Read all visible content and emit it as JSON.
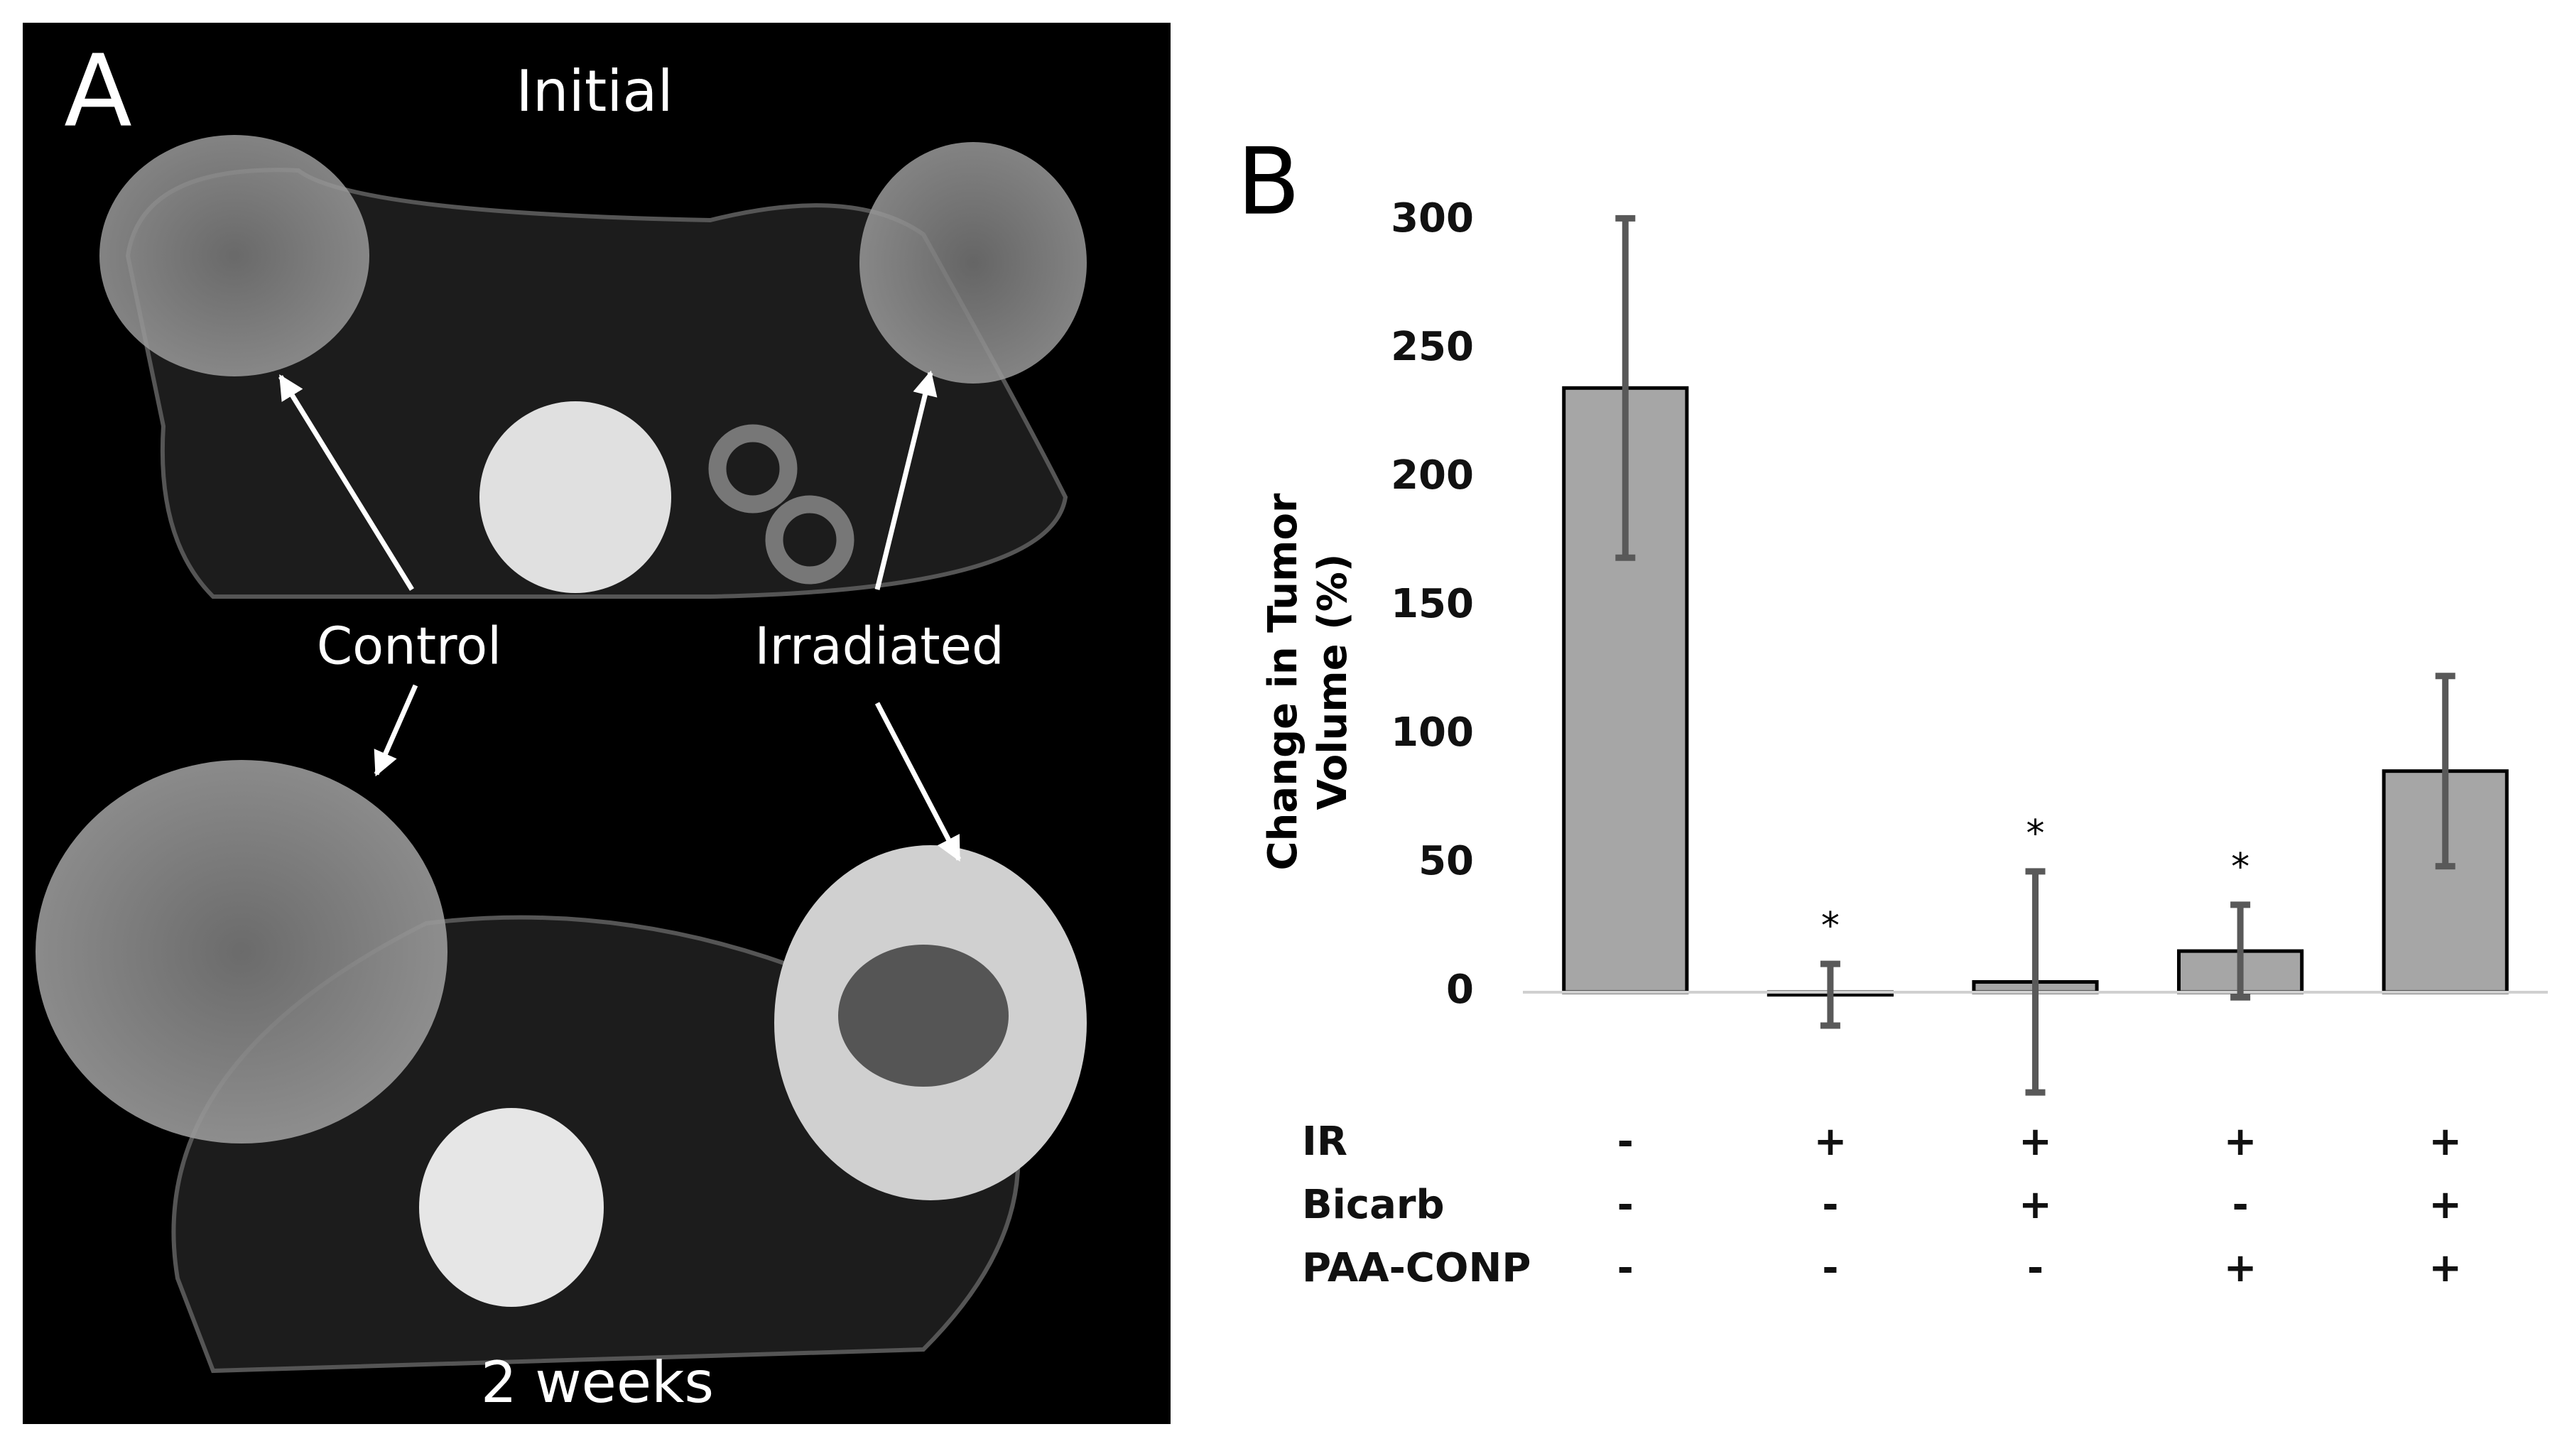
{
  "panel_a": {
    "label": "A",
    "top_label": "Initial",
    "bottom_label": "2 weeks",
    "annotations": [
      "Control",
      "Irradiated"
    ]
  },
  "chart_data": {
    "type": "bar",
    "panel_label": "B",
    "ylabel": [
      "Change in Tumor",
      "Volume (%)"
    ],
    "categories": [
      null,
      null,
      null,
      null,
      null
    ],
    "condition_rows": [
      {
        "name": "IR",
        "values": [
          "-",
          "+",
          "+",
          "+",
          "+"
        ]
      },
      {
        "name": "Bicarb",
        "values": [
          "-",
          "-",
          "+",
          "-",
          "+"
        ]
      },
      {
        "name": "PAA-CONP",
        "values": [
          "-",
          "-",
          "-",
          "+",
          "+"
        ]
      }
    ],
    "values": [
      235,
      -1,
      4,
      16,
      86
    ],
    "errors": [
      66,
      12,
      43,
      18,
      37
    ],
    "annotations": [
      null,
      "*",
      "*",
      "*",
      null
    ],
    "color": "#a6a6a6",
    "error_color": "#595959",
    "ylim": [
      -45,
      300
    ],
    "yticks": [
      0,
      50,
      100,
      150,
      200,
      250,
      300
    ],
    "grid": false
  }
}
